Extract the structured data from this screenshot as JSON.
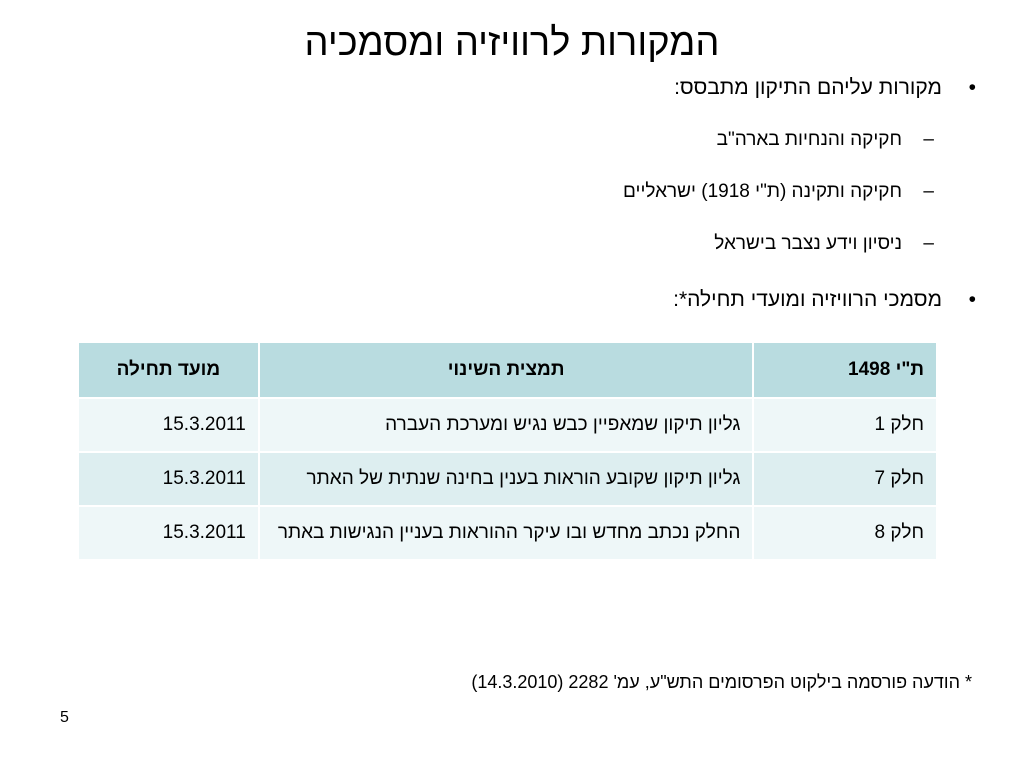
{
  "slide": {
    "title": "המקורות לרוויזיה ומסמכיה",
    "bullets": [
      {
        "text": "מקורות עליהם התיקון מתבסס:",
        "sub_items": [
          "חקיקה והנחיות בארה\"ב",
          "חקיקה ותקינה (ת\"י 1918) ישראליים",
          "ניסיון וידע נצבר בישראל"
        ]
      },
      {
        "text": "מסמכי הרוויזיה ומועדי תחילה*:",
        "sub_items": []
      }
    ],
    "bullet_symbol": "•",
    "dash_symbol": "–",
    "table": {
      "headers": {
        "part": "ת\"י 1498",
        "summary": "תמצית השינוי",
        "date": "מועד תחילה"
      },
      "rows": [
        {
          "part": "חלק  1",
          "summary": "גליון תיקון שמאפיין כבש נגיש ומערכת העברה",
          "date": "15.3.2011"
        },
        {
          "part": "חלק  7",
          "summary": "גליון תיקון שקובע הוראות בענין בחינה שנתית של האתר",
          "date": "15.3.2011"
        },
        {
          "part": "חלק  8",
          "summary": "החלק נכתב מחדש ובו עיקר ההוראות בעניין הנגישות באתר",
          "date": "15.3.2011"
        }
      ]
    },
    "footnote": "* הודעה פורסמה בילקוט הפרסומים התש\"ע, עמ' 2282 (14.3.2010)",
    "slide_number": "5",
    "colors": {
      "header_bg": "#b9dce0",
      "row_bg": "#ddeef0",
      "row_alt_bg": "#eef7f8"
    }
  }
}
